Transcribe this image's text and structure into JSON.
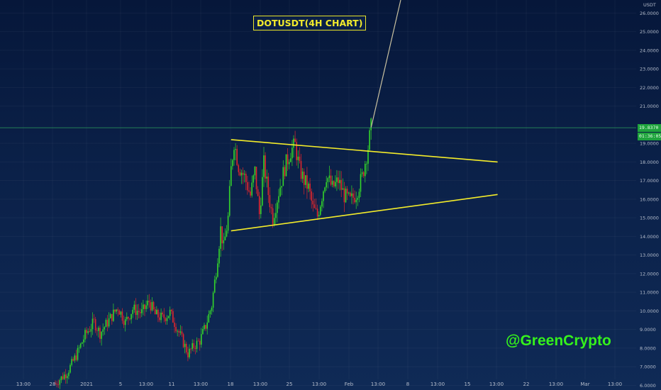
{
  "chart_data": {
    "type": "candlestick",
    "title": "DOTUSDT(4H CHART)",
    "watermark": "@GreenCrypto",
    "currency_label": "USDT",
    "price_label": "19.8370",
    "countdown_label": "01:36:05",
    "ylim": [
      5.75,
      26.7
    ],
    "y_ticks": [
      {
        "value": 26,
        "label": "26.0000"
      },
      {
        "value": 25,
        "label": "25.0000"
      },
      {
        "value": 24,
        "label": "24.0000"
      },
      {
        "value": 23,
        "label": "23.0000"
      },
      {
        "value": 22,
        "label": "22.0000"
      },
      {
        "value": 21,
        "label": "21.0000"
      },
      {
        "value": 19,
        "label": "19.0000"
      },
      {
        "value": 18,
        "label": "18.0000"
      },
      {
        "value": 17,
        "label": "17.0000"
      },
      {
        "value": 16,
        "label": "16.0000"
      },
      {
        "value": 15,
        "label": "15.0000"
      },
      {
        "value": 14,
        "label": "14.0000"
      },
      {
        "value": 13,
        "label": "13.0000"
      },
      {
        "value": 12,
        "label": "12.0000"
      },
      {
        "value": 11,
        "label": "11.0000"
      },
      {
        "value": 10,
        "label": "10.0000"
      },
      {
        "value": 9,
        "label": "9.0000"
      },
      {
        "value": 8,
        "label": "8.0000"
      },
      {
        "value": 7,
        "label": "7.0000"
      },
      {
        "value": 6,
        "label": "6.0000"
      }
    ],
    "x_ticks": [
      "13:00",
      "28",
      "2021",
      "5",
      "13:00",
      "11",
      "13:00",
      "18",
      "13:00",
      "25",
      "13:00",
      "Feb",
      "13:00",
      "8",
      "13:00",
      "15",
      "13:00",
      "22",
      "13:00",
      "Mar",
      "13:00"
    ],
    "price_path": [
      [
        0,
        6.1
      ],
      [
        8,
        6.7
      ],
      [
        14,
        7.6
      ],
      [
        20,
        8.7
      ],
      [
        26,
        9.4
      ],
      [
        30,
        8.8
      ],
      [
        36,
        9.5
      ],
      [
        42,
        10.2
      ],
      [
        47,
        9.4
      ],
      [
        52,
        10.1
      ],
      [
        58,
        9.9
      ],
      [
        63,
        10.5
      ],
      [
        67,
        9.8
      ],
      [
        72,
        9.6
      ],
      [
        77,
        9.9
      ],
      [
        81,
        9.2
      ],
      [
        86,
        8.3
      ],
      [
        89,
        7.7
      ],
      [
        93,
        8.1
      ],
      [
        97,
        8.4
      ],
      [
        101,
        9.2
      ],
      [
        105,
        10.3
      ],
      [
        108,
        12.2
      ],
      [
        111,
        14.4
      ],
      [
        113,
        13.4
      ],
      [
        116,
        15.0
      ],
      [
        118,
        17.6
      ],
      [
        120,
        19.1
      ],
      [
        123,
        17.8
      ],
      [
        127,
        17.2
      ],
      [
        131,
        16.2
      ],
      [
        134,
        17.5
      ],
      [
        137,
        15.2
      ],
      [
        140,
        17.9
      ],
      [
        143,
        16.3
      ],
      [
        146,
        15.0
      ],
      [
        150,
        16.4
      ],
      [
        154,
        17.7
      ],
      [
        158,
        18.6
      ],
      [
        161,
        18.9
      ],
      [
        164,
        17.6
      ],
      [
        167,
        17.0
      ],
      [
        170,
        16.6
      ],
      [
        173,
        15.5
      ],
      [
        176,
        15.1
      ],
      [
        179,
        16.2
      ],
      [
        182,
        17.3
      ],
      [
        186,
        16.6
      ],
      [
        190,
        17.0
      ],
      [
        194,
        16.2
      ],
      [
        198,
        15.9
      ],
      [
        202,
        16.3
      ],
      [
        206,
        17.2
      ],
      [
        210,
        18.8
      ],
      [
        212,
        19.84
      ]
    ],
    "trendlines": [
      {
        "name": "resistance",
        "from": [
          118,
          19.2
        ],
        "to": [
          236,
          18.0
        ]
      },
      {
        "name": "support",
        "from": [
          118,
          14.3
        ],
        "to": [
          236,
          16.25
        ]
      }
    ],
    "projection": {
      "from": [
        212,
        19.84
      ],
      "to": [
        225,
        27.0
      ]
    },
    "horizontal_level": 19.84
  }
}
